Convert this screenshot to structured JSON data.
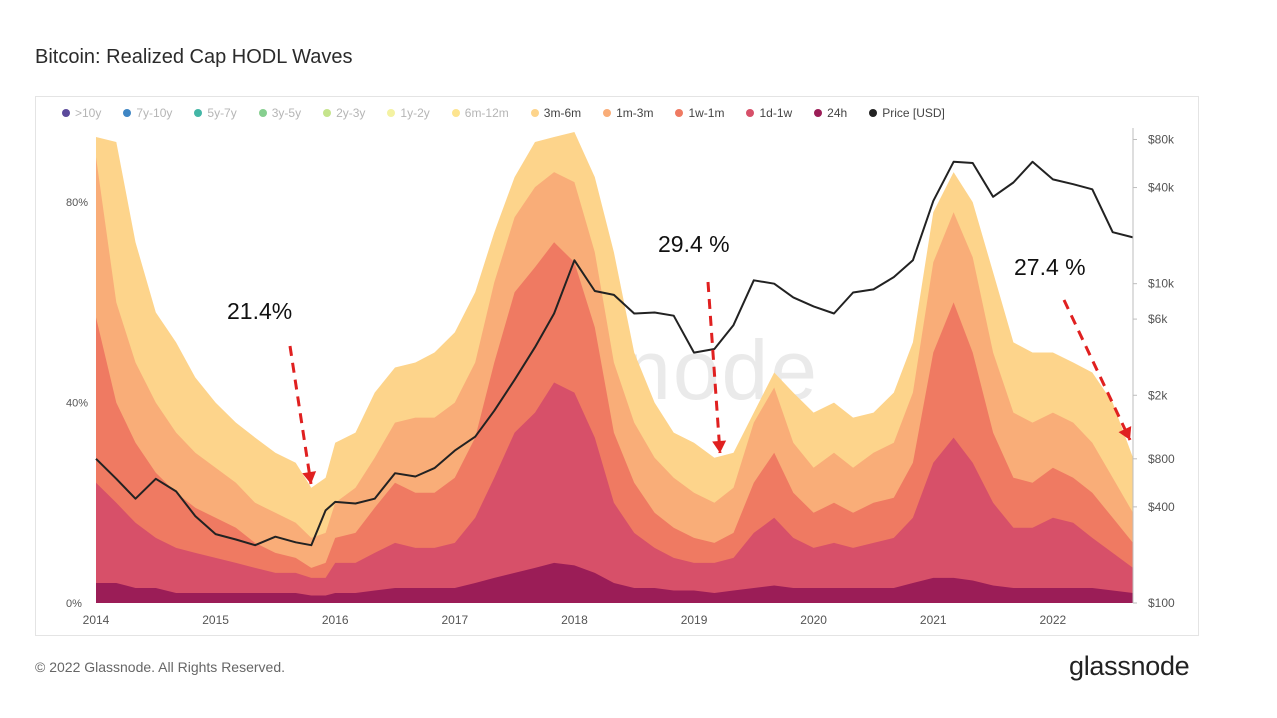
{
  "chart_data": {
    "type": "area",
    "title": "Bitcoin: Realized Cap HODL Waves",
    "xlabel": "",
    "ylabel": "",
    "x_ticks": [
      "2014",
      "2015",
      "2016",
      "2017",
      "2018",
      "2019",
      "2020",
      "2021",
      "2022"
    ],
    "y_left_ticks": [
      "80%",
      "40%",
      "0%"
    ],
    "y_left_range": [
      0,
      94
    ],
    "y_right_ticks": [
      "$80k",
      "$40k",
      "$10k",
      "$6k",
      "$2k",
      "$800",
      "$400",
      "$100"
    ],
    "y_right_range_usd": [
      100,
      100000
    ],
    "legend": [
      {
        "label": ">10y",
        "color": "#5b4a9b",
        "active": false
      },
      {
        "label": "7y-10y",
        "color": "#3f86c4",
        "active": false
      },
      {
        "label": "5y-7y",
        "color": "#43b6a6",
        "active": false
      },
      {
        "label": "3y-5y",
        "color": "#86cf8f",
        "active": false
      },
      {
        "label": "2y-3y",
        "color": "#c5e48c",
        "active": false
      },
      {
        "label": "1y-2y",
        "color": "#f4f2a2",
        "active": false
      },
      {
        "label": "6m-12m",
        "color": "#fde48f",
        "active": false
      },
      {
        "label": "3m-6m",
        "color": "#fdd48b",
        "active": true
      },
      {
        "label": "1m-3m",
        "color": "#f9ad78",
        "active": true
      },
      {
        "label": "1w-1m",
        "color": "#ef7a62",
        "active": true
      },
      {
        "label": "1d-1w",
        "color": "#d75069",
        "active": true
      },
      {
        "label": "24h",
        "color": "#9b1d57",
        "active": true
      },
      {
        "label": "Price [USD]",
        "color": "#222222",
        "active": true
      }
    ],
    "x": [
      2014.0,
      2014.17,
      2014.33,
      2014.5,
      2014.67,
      2014.83,
      2015.0,
      2015.17,
      2015.33,
      2015.5,
      2015.67,
      2015.8,
      2015.92,
      2016.0,
      2016.17,
      2016.33,
      2016.5,
      2016.67,
      2016.83,
      2017.0,
      2017.17,
      2017.33,
      2017.5,
      2017.67,
      2017.83,
      2018.0,
      2018.17,
      2018.33,
      2018.5,
      2018.67,
      2018.83,
      2019.0,
      2019.17,
      2019.33,
      2019.5,
      2019.67,
      2019.83,
      2020.0,
      2020.17,
      2020.33,
      2020.5,
      2020.67,
      2020.83,
      2021.0,
      2021.17,
      2021.33,
      2021.5,
      2021.67,
      2021.83,
      2022.0,
      2022.17,
      2022.33,
      2022.5,
      2022.67
    ],
    "series": [
      {
        "name": "3m-6m",
        "values": [
          93,
          92,
          72,
          58,
          52,
          45,
          40,
          36,
          33,
          30,
          28,
          23,
          25,
          32,
          34,
          42,
          47,
          48,
          50,
          54,
          62,
          74,
          85,
          92,
          93,
          94,
          85,
          70,
          50,
          40,
          34,
          32,
          29,
          30,
          38,
          46,
          42,
          38,
          40,
          37,
          38,
          42,
          52,
          78,
          86,
          80,
          66,
          52,
          50,
          50,
          48,
          46,
          40,
          29
        ]
      },
      {
        "name": "1m-3m",
        "values": [
          89,
          60,
          48,
          40,
          34,
          30,
          27,
          24,
          20,
          18,
          16,
          13,
          14,
          20,
          23,
          29,
          36,
          37,
          37,
          40,
          48,
          64,
          77,
          83,
          86,
          84,
          70,
          48,
          36,
          29,
          25,
          22,
          20,
          23,
          36,
          43,
          32,
          27,
          30,
          27,
          30,
          32,
          42,
          68,
          78,
          69,
          50,
          38,
          36,
          38,
          36,
          32,
          25,
          18
        ]
      },
      {
        "name": "1w-1m",
        "values": [
          57,
          40,
          32,
          26,
          22,
          19,
          17,
          15,
          12,
          10,
          9,
          7,
          8,
          13,
          14,
          19,
          24,
          22,
          22,
          25,
          33,
          48,
          62,
          67,
          72,
          68,
          55,
          34,
          24,
          18,
          15,
          13,
          12,
          14,
          24,
          30,
          22,
          18,
          20,
          18,
          20,
          21,
          28,
          50,
          60,
          50,
          34,
          25,
          24,
          27,
          25,
          22,
          17,
          12
        ]
      },
      {
        "name": "1d-1w",
        "values": [
          24,
          20,
          16,
          13,
          11,
          10,
          9,
          8,
          7,
          6,
          6,
          5,
          5,
          8,
          8,
          10,
          12,
          11,
          11,
          12,
          17,
          25,
          34,
          38,
          44,
          42,
          33,
          20,
          14,
          11,
          9,
          8,
          8,
          9,
          14,
          17,
          13,
          11,
          12,
          11,
          12,
          13,
          17,
          28,
          33,
          28,
          20,
          15,
          15,
          17,
          16,
          13,
          10,
          7
        ]
      },
      {
        "name": "24h",
        "values": [
          4,
          4,
          3,
          3,
          2,
          2,
          2,
          2,
          2,
          2,
          2,
          1.5,
          1.5,
          2,
          2,
          2.5,
          3,
          3,
          3,
          3,
          4,
          5,
          6,
          7,
          8,
          7.5,
          6,
          4,
          3,
          3,
          2.5,
          2.5,
          2,
          2.5,
          3,
          3.5,
          3,
          3,
          3,
          3,
          3,
          3,
          4,
          5,
          5,
          4.5,
          3.5,
          3,
          3,
          3,
          3,
          3,
          2.5,
          2
        ]
      },
      {
        "name": "Price [USD]",
        "values": [
          800,
          600,
          450,
          600,
          500,
          350,
          270,
          250,
          230,
          260,
          240,
          230,
          380,
          430,
          420,
          450,
          650,
          620,
          700,
          900,
          1100,
          1600,
          2500,
          4000,
          6500,
          14000,
          9000,
          8500,
          6500,
          6600,
          6300,
          3700,
          3900,
          5500,
          10500,
          10000,
          8200,
          7200,
          6500,
          8800,
          9200,
          11000,
          14000,
          33000,
          58000,
          57000,
          35000,
          43000,
          58000,
          45000,
          42000,
          39000,
          21000,
          19500
        ]
      }
    ],
    "annotations": [
      {
        "text": "21.4%",
        "x": 2015.8
      },
      {
        "text": "29.4 %",
        "x": 2019.17
      },
      {
        "text": "27.4 %",
        "x": 2022.67
      }
    ],
    "watermark": "glassnode"
  },
  "footer": {
    "copyright": "© 2022 Glassnode. All Rights Reserved.",
    "brand": "glassnode"
  }
}
